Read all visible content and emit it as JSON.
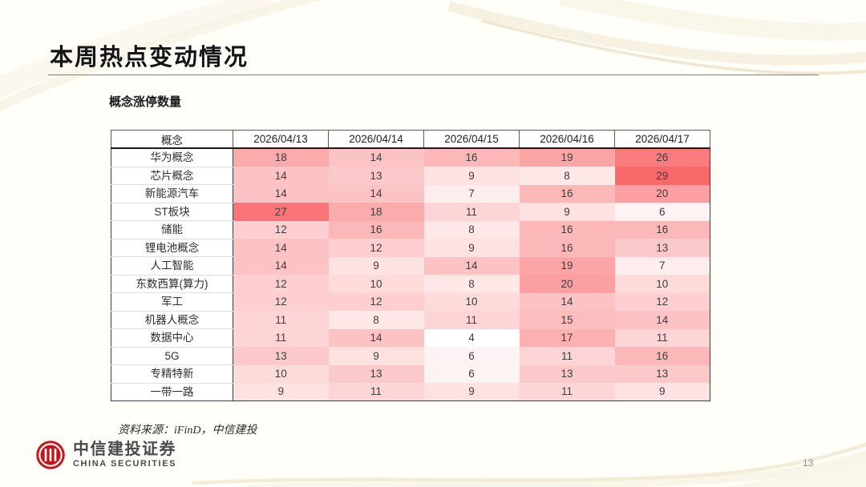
{
  "slide": {
    "title": "本周热点变动情况",
    "subtitle": "概念涨停数量",
    "source_note": "资料来源：iFinD，中信建投",
    "page_number": "13",
    "footer_logo": {
      "cn": "中信建投证券",
      "en": "CHINA SECURITIES",
      "brand_red": "#C5161D",
      "text_color": "#4A4A4C"
    }
  },
  "chart_data": {
    "type": "heatmap",
    "title": "概念涨停数量",
    "columns": [
      "概念",
      "2026/04/13",
      "2026/04/14",
      "2026/04/15",
      "2026/04/16",
      "2026/04/17"
    ],
    "rows": [
      {
        "name": "华为概念",
        "values": [
          18,
          14,
          16,
          19,
          26
        ]
      },
      {
        "name": "芯片概念",
        "values": [
          14,
          13,
          9,
          8,
          29
        ]
      },
      {
        "name": "新能源汽车",
        "values": [
          14,
          14,
          7,
          16,
          20
        ]
      },
      {
        "name": "ST板块",
        "values": [
          27,
          18,
          11,
          9,
          6
        ]
      },
      {
        "name": "储能",
        "values": [
          12,
          16,
          8,
          16,
          16
        ]
      },
      {
        "name": "锂电池概念",
        "values": [
          14,
          12,
          9,
          16,
          13
        ]
      },
      {
        "name": "人工智能",
        "values": [
          14,
          9,
          14,
          19,
          7
        ]
      },
      {
        "name": "东数西算(算力)",
        "values": [
          12,
          10,
          8,
          20,
          10
        ]
      },
      {
        "name": "军工",
        "values": [
          12,
          12,
          10,
          14,
          12
        ]
      },
      {
        "name": "机器人概念",
        "values": [
          11,
          8,
          11,
          15,
          14
        ]
      },
      {
        "name": "数据中心",
        "values": [
          11,
          14,
          4,
          17,
          11
        ]
      },
      {
        "name": "5G",
        "values": [
          13,
          9,
          6,
          11,
          16
        ]
      },
      {
        "name": "专精特新",
        "values": [
          10,
          13,
          6,
          13,
          13
        ]
      },
      {
        "name": "一带一路",
        "values": [
          9,
          11,
          9,
          11,
          9
        ]
      }
    ],
    "color_scale": {
      "min": 4,
      "max": 29,
      "min_color": "#FFFFFF",
      "max_color": "#F8696B"
    },
    "legend_position": "none",
    "grid": false
  }
}
